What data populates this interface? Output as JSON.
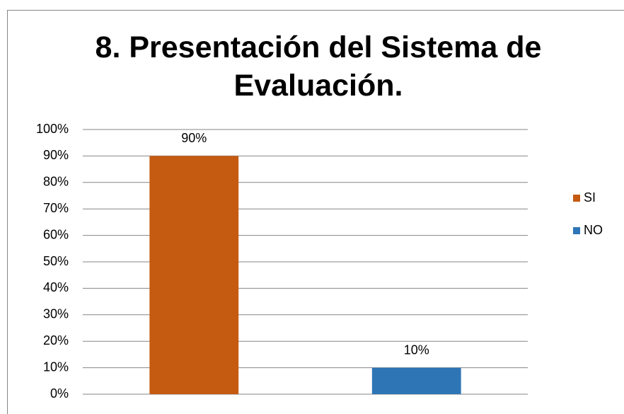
{
  "chart_data": {
    "type": "bar",
    "title": "8. Presentación del Sistema de Evaluación.",
    "categories": [
      null,
      null
    ],
    "series": [
      {
        "name": "SI",
        "color": "#c55a11",
        "values": [
          90,
          null
        ],
        "value_labels": [
          "90%",
          null
        ]
      },
      {
        "name": "NO",
        "color": "#2e75b6",
        "values": [
          null,
          10
        ],
        "value_labels": [
          null,
          "10%"
        ]
      }
    ],
    "ylim": [
      0,
      100
    ],
    "yticks": [
      {
        "value": 0,
        "label": "0%"
      },
      {
        "value": 10,
        "label": "10%"
      },
      {
        "value": 20,
        "label": "20%"
      },
      {
        "value": 30,
        "label": "30%"
      },
      {
        "value": 40,
        "label": "40%"
      },
      {
        "value": 50,
        "label": "50%"
      },
      {
        "value": 60,
        "label": "60%"
      },
      {
        "value": 70,
        "label": "70%"
      },
      {
        "value": 80,
        "label": "80%"
      },
      {
        "value": 90,
        "label": "90%"
      },
      {
        "value": 100,
        "label": "100%"
      }
    ],
    "grid": true,
    "legend": "right"
  }
}
